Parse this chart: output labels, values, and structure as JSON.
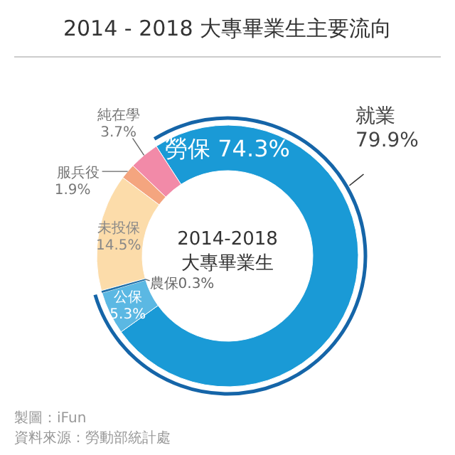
{
  "chart_data": {
    "type": "donut",
    "title": "2014 - 2018 大專畢業生主要流向",
    "categories": [
      "勞保",
      "公保",
      "農保",
      "未投保",
      "服兵役",
      "純在學"
    ],
    "values": [
      74.3,
      5.3,
      0.3,
      14.5,
      1.9,
      3.7
    ],
    "value_labels": [
      "74.3%",
      "5.3%",
      "0.3%",
      "14.5%",
      "1.9%",
      "3.7%"
    ],
    "colors": [
      "#1a9ad6",
      "#5bb8e3",
      "#1f6fa8",
      "#fcdcaa",
      "#f4a57f",
      "#f28aa8"
    ],
    "annotations": [
      "2014-2018",
      "大專畢業生",
      "就業",
      "79.9%",
      "製圖：iFun",
      "資料來源：勞動部統計處"
    ]
  }
}
